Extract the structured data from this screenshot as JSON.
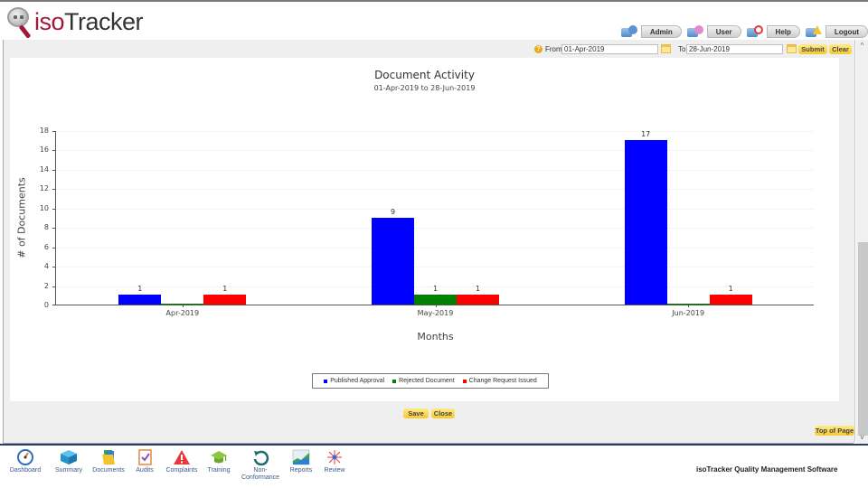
{
  "header": {
    "logo_prefix": "iso",
    "logo_suffix": "Tracker",
    "user_nav": [
      {
        "label": "Admin",
        "icon": "admin-icon"
      },
      {
        "label": "User",
        "icon": "users-icon"
      },
      {
        "label": "Help",
        "icon": "help-lifebuoy-icon"
      },
      {
        "label": "Logout",
        "icon": "logout-icon"
      }
    ]
  },
  "filter": {
    "help_glyph": "?",
    "from_label": "From:",
    "from_value": "01-Apr-2019",
    "to_label": "To:",
    "to_value": "28-Jun-2019",
    "submit_label": "Submit",
    "clear_label": "Clear"
  },
  "chart_data": {
    "type": "bar",
    "title": "Document Activity",
    "subtitle": "01-Apr-2019 to 28-Jun-2019",
    "xlabel": "Months",
    "ylabel": "# of Documents",
    "categories": [
      "Apr-2019",
      "May-2019",
      "Jun-2019"
    ],
    "series": [
      {
        "name": "Published Approval",
        "color": "#0000ff",
        "values": [
          1,
          9,
          17
        ]
      },
      {
        "name": "Rejected Document",
        "color": "#008000",
        "values": [
          0,
          1,
          0
        ]
      },
      {
        "name": "Change Request Issued",
        "color": "#ff0000",
        "values": [
          1,
          1,
          1
        ]
      }
    ],
    "ylim": [
      0,
      18
    ],
    "yticks": [
      0,
      2,
      4,
      6,
      8,
      10,
      12,
      14,
      16,
      18
    ],
    "grid": true,
    "legend_position": "bottom"
  },
  "actions": {
    "save_label": "Save",
    "close_label": "Close",
    "top_label": "Top of Page"
  },
  "scrollbar": {
    "up": "^",
    "down": "v"
  },
  "bottom_nav": [
    {
      "label": "Dashboard",
      "icon": "dashboard-gauge-icon"
    },
    {
      "label": "Summary",
      "icon": "summary-cube-icon"
    },
    {
      "label": "Documents",
      "icon": "documents-folder-icon"
    },
    {
      "label": "Audits",
      "icon": "audits-clipboard-icon"
    },
    {
      "label": "Complaints",
      "icon": "complaints-warning-icon"
    },
    {
      "label": "Training",
      "icon": "training-graduation-cap-icon"
    },
    {
      "label": "Non-Conformance",
      "label_line1": "Non-",
      "label_line2": "Conformance",
      "icon": "nonconformance-undo-icon"
    },
    {
      "label": "Reports",
      "icon": "reports-chart-icon"
    },
    {
      "label": "Review",
      "icon": "review-star-icon"
    }
  ],
  "footer": {
    "text": "isoTracker Quality Management Software"
  }
}
